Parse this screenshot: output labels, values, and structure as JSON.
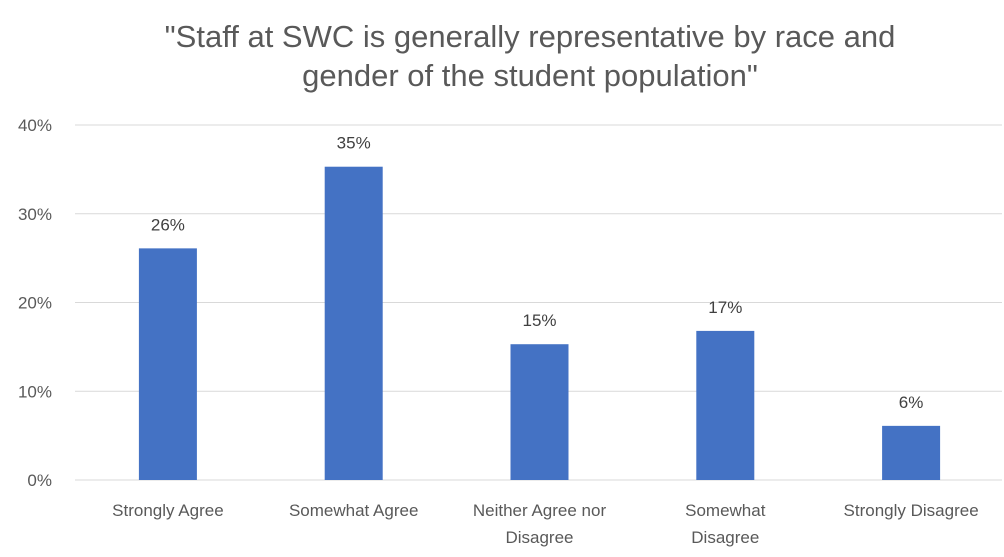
{
  "chart_data": {
    "type": "bar",
    "title_lines": [
      "\"Staff at SWC is generally representative by race and",
      "gender of the student population\""
    ],
    "categories": [
      [
        "Strongly Agree"
      ],
      [
        "Somewhat Agree"
      ],
      [
        "Neither Agree nor",
        "Disagree"
      ],
      [
        "Somewhat",
        "Disagree"
      ],
      [
        "Strongly Disagree"
      ]
    ],
    "values": [
      26,
      35,
      15,
      17,
      6
    ],
    "value_precise": [
      26.1,
      35.3,
      15.3,
      16.8,
      6.1
    ],
    "data_labels": [
      "26%",
      "35%",
      "15%",
      "17%",
      "6%"
    ],
    "ylim": [
      0,
      40
    ],
    "y_ticks": [
      0,
      10,
      20,
      30,
      40
    ],
    "y_tick_labels": [
      "0%",
      "10%",
      "20%",
      "30%",
      "40%"
    ],
    "xlabel": "",
    "ylabel": "",
    "grid": true,
    "legend": "none",
    "bar_color": "#4472c4"
  }
}
